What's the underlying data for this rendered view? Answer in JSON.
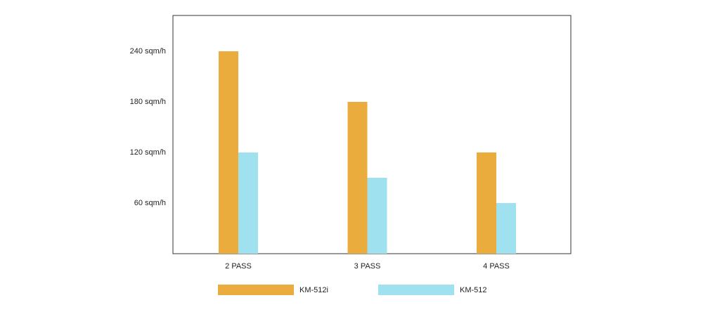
{
  "chart_data": {
    "type": "bar",
    "categories": [
      "2 PASS",
      "3 PASS",
      "4 PASS"
    ],
    "series": [
      {
        "name": "KM-512i",
        "color": "#ebac3e",
        "values": [
          240,
          180,
          120
        ]
      },
      {
        "name": "KM-512",
        "color": "#9fe1ef",
        "values": [
          120,
          90,
          60
        ]
      }
    ],
    "ylim": [
      0,
      282.5
    ],
    "yticks": [
      {
        "value": 60,
        "label": "60 sqm/h"
      },
      {
        "value": 120,
        "label": "120 sqm/h"
      },
      {
        "value": 180,
        "label": "180 sqm/h"
      },
      {
        "value": 240,
        "label": "240 sqm/h"
      }
    ],
    "grid": false,
    "legend": "bottom"
  }
}
